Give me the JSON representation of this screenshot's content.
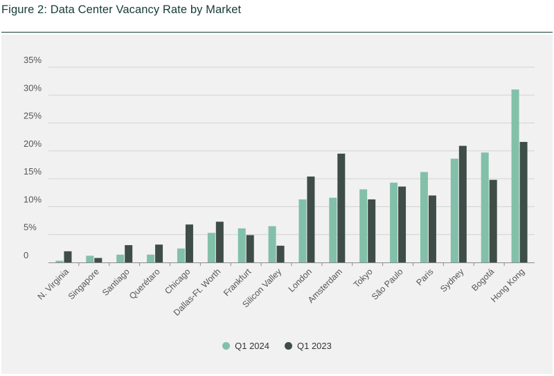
{
  "figure_title": "Figure 2: Data Center Vacancy Rate by Market",
  "colors": {
    "q1_2024": "#82c0a9",
    "q1_2023": "#3f4d49",
    "title": "#153b36",
    "panel": "#f1f1f1",
    "grid": "#d2d2d2",
    "text": "#555555"
  },
  "chart_data": {
    "type": "bar",
    "title": "Figure 2: Data Center Vacancy Rate by Market",
    "xlabel": "",
    "ylabel": "",
    "ylim": [
      0,
      35
    ],
    "yticks": [
      0,
      5,
      10,
      15,
      20,
      25,
      30,
      35
    ],
    "ytick_labels": [
      "0",
      "5%",
      "10%",
      "15%",
      "20%",
      "25%",
      "30%",
      "35%"
    ],
    "grid": true,
    "legend_position": "bottom",
    "categories": [
      "N. Virginia",
      "Singapore",
      "Santiago",
      "Querétaro",
      "Chicago",
      "Dallas-Ft. Worth",
      "Frankfurt",
      "Silicon Valley",
      "London",
      "Amsterdam",
      "Tokyo",
      "São Paulo",
      "Paris",
      "Sydney",
      "Bogotá",
      "Hong Kong"
    ],
    "series": [
      {
        "name": "Q1 2024",
        "values": [
          0.3,
          1.2,
          1.4,
          1.4,
          2.5,
          5.3,
          6.1,
          6.5,
          11.3,
          11.6,
          13.1,
          14.3,
          16.2,
          18.6,
          19.7,
          31.0
        ]
      },
      {
        "name": "Q1 2023",
        "values": [
          2.0,
          0.8,
          3.1,
          3.2,
          6.8,
          7.3,
          4.9,
          3.0,
          15.4,
          19.5,
          11.3,
          13.6,
          12.0,
          20.9,
          14.8,
          21.6
        ]
      }
    ]
  }
}
